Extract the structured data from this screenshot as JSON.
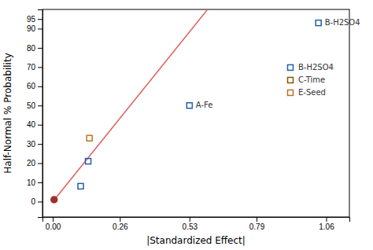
{
  "chart_data": {
    "type": "scatter",
    "xlabel": "|Standardized Effect|",
    "ylabel": "Half-Normal % Probability",
    "xlim": [
      -0.04,
      1.15
    ],
    "ylim": [
      -8,
      100
    ],
    "xticks": [
      {
        "value": 0,
        "label": "0.00"
      },
      0.26,
      0.53,
      0.79,
      1.06
    ],
    "yticks": [
      0,
      10,
      20,
      30,
      40,
      50,
      60,
      70,
      80,
      90,
      95
    ],
    "grid": false,
    "legend": "right",
    "series": [
      {
        "type": "line",
        "color": "#e06060",
        "x": [
          0.0,
          0.6
        ],
        "values": [
          0.0,
          100
        ]
      },
      {
        "type": "scatter",
        "marker": "circle",
        "color": "#9e3030",
        "x": [
          0.005
        ],
        "values": [
          1.0
        ]
      },
      {
        "type": "scatter",
        "name": "B-H2SO4",
        "marker": "square-open",
        "color": "#2060a8",
        "x": [
          0.108,
          0.137,
          0.53,
          1.03
        ],
        "values": [
          8.0,
          21.0,
          50.0,
          93.0
        ]
      },
      {
        "type": "scatter",
        "name": "C-Time",
        "marker": "square-open",
        "color": "#8B5500",
        "x": [],
        "values": []
      },
      {
        "type": "scatter",
        "name": "E-Seed",
        "marker": "square-open",
        "color": "#c07020",
        "x": [
          0.142
        ],
        "values": [
          33.0
        ]
      }
    ],
    "annotations": [
      {
        "text": "A-Fe",
        "x": 0.53,
        "y": 50.0
      },
      {
        "text": "B-H2SO4",
        "x": 1.03,
        "y": 93.0
      }
    ]
  }
}
